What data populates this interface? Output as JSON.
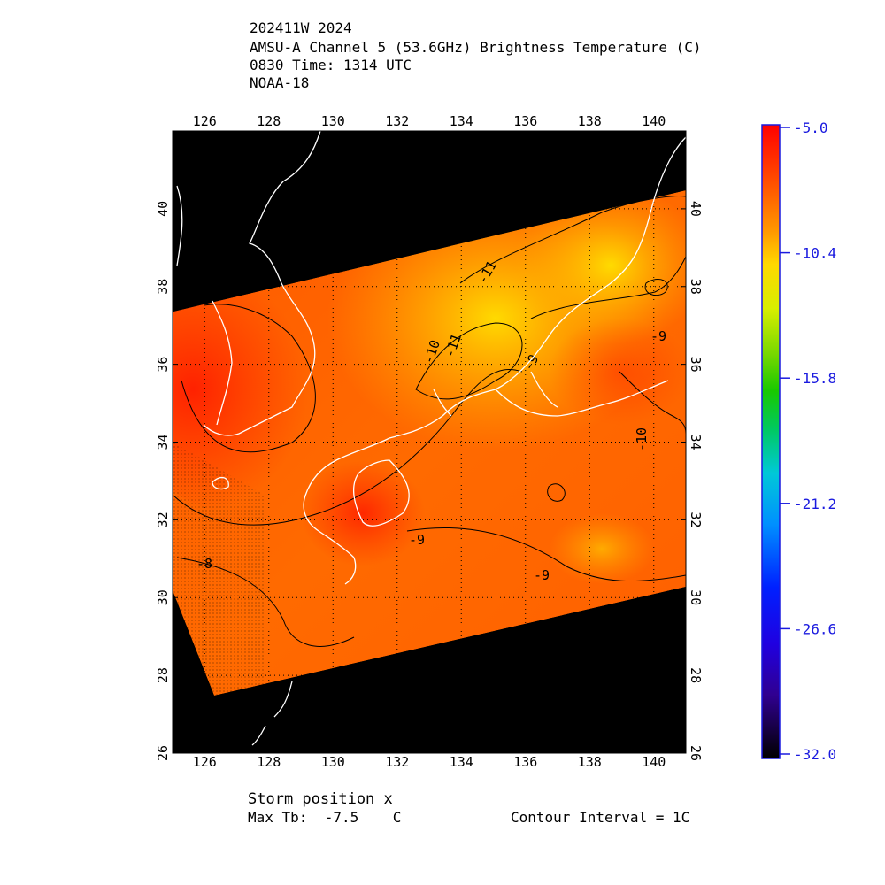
{
  "header": {
    "line1": "202411W 2024",
    "line2": "AMSU-A Channel 5 (53.6GHz) Brightness Temperature (C)",
    "line3": "0830 Time: 1314 UTC",
    "line4": "NOAA-18"
  },
  "map": {
    "lon_range": [
      125,
      141
    ],
    "lat_range": [
      26,
      42
    ],
    "lon_ticks": [
      "126",
      "128",
      "130",
      "132",
      "134",
      "136",
      "138",
      "140"
    ],
    "lat_ticks": [
      "26",
      "28",
      "30",
      "32",
      "34",
      "36",
      "38",
      "40"
    ],
    "contour_labels": [
      "-11",
      "-10",
      "-11",
      "-9",
      "-9",
      "-9",
      "-9",
      "-8",
      "-10"
    ],
    "background": "#000000",
    "coastline_color": "#ffffff",
    "contour_color": "#000000",
    "grid": true
  },
  "colorbar": {
    "labels": [
      "-5.0",
      "-10.4",
      "-15.8",
      "-21.2",
      "-26.6",
      "-32.0"
    ],
    "range": [
      -32.0,
      -5.0
    ],
    "label_color": "#1a1adf"
  },
  "footer": {
    "storm": "Storm position x",
    "max_tb": "Max Tb:  -7.5    C",
    "contour": "Contour Interval = 1C"
  }
}
